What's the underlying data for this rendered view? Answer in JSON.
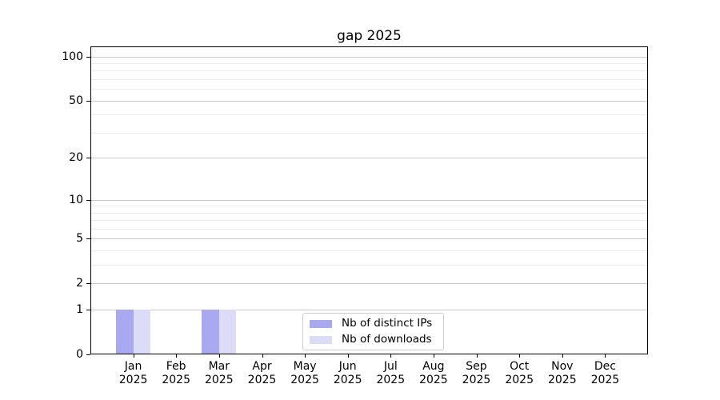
{
  "chart_data": {
    "type": "bar",
    "title": "gap 2025",
    "categories": [
      {
        "label": "Jan",
        "sub": "2025"
      },
      {
        "label": "Feb",
        "sub": "2025"
      },
      {
        "label": "Mar",
        "sub": "2025"
      },
      {
        "label": "Apr",
        "sub": "2025"
      },
      {
        "label": "May",
        "sub": "2025"
      },
      {
        "label": "Jun",
        "sub": "2025"
      },
      {
        "label": "Jul",
        "sub": "2025"
      },
      {
        "label": "Aug",
        "sub": "2025"
      },
      {
        "label": "Sep",
        "sub": "2025"
      },
      {
        "label": "Oct",
        "sub": "2025"
      },
      {
        "label": "Nov",
        "sub": "2025"
      },
      {
        "label": "Dec",
        "sub": "2025"
      }
    ],
    "series": [
      {
        "name": "Nb of distinct IPs",
        "color": "#a9a9f1",
        "values": [
          1,
          0,
          1,
          0,
          0,
          0,
          0,
          0,
          0,
          0,
          0,
          0
        ]
      },
      {
        "name": "Nb of downloads",
        "color": "#dcdcf8",
        "values": [
          1,
          0,
          1,
          0,
          0,
          0,
          0,
          0,
          0,
          0,
          0,
          0
        ]
      }
    ],
    "yscale": "log1p",
    "ylim": [
      0,
      117
    ],
    "ytick_values": [
      100,
      50,
      20,
      10,
      5,
      2,
      1,
      0
    ],
    "ytick_labels": [
      "100",
      "50",
      "20",
      "10",
      "5",
      "2",
      "1",
      "0"
    ],
    "minor_gridline_values": [
      90,
      80,
      70,
      60,
      40,
      30,
      9,
      8,
      7,
      6,
      4,
      3
    ],
    "grid": true,
    "legend_position": "lower center"
  }
}
